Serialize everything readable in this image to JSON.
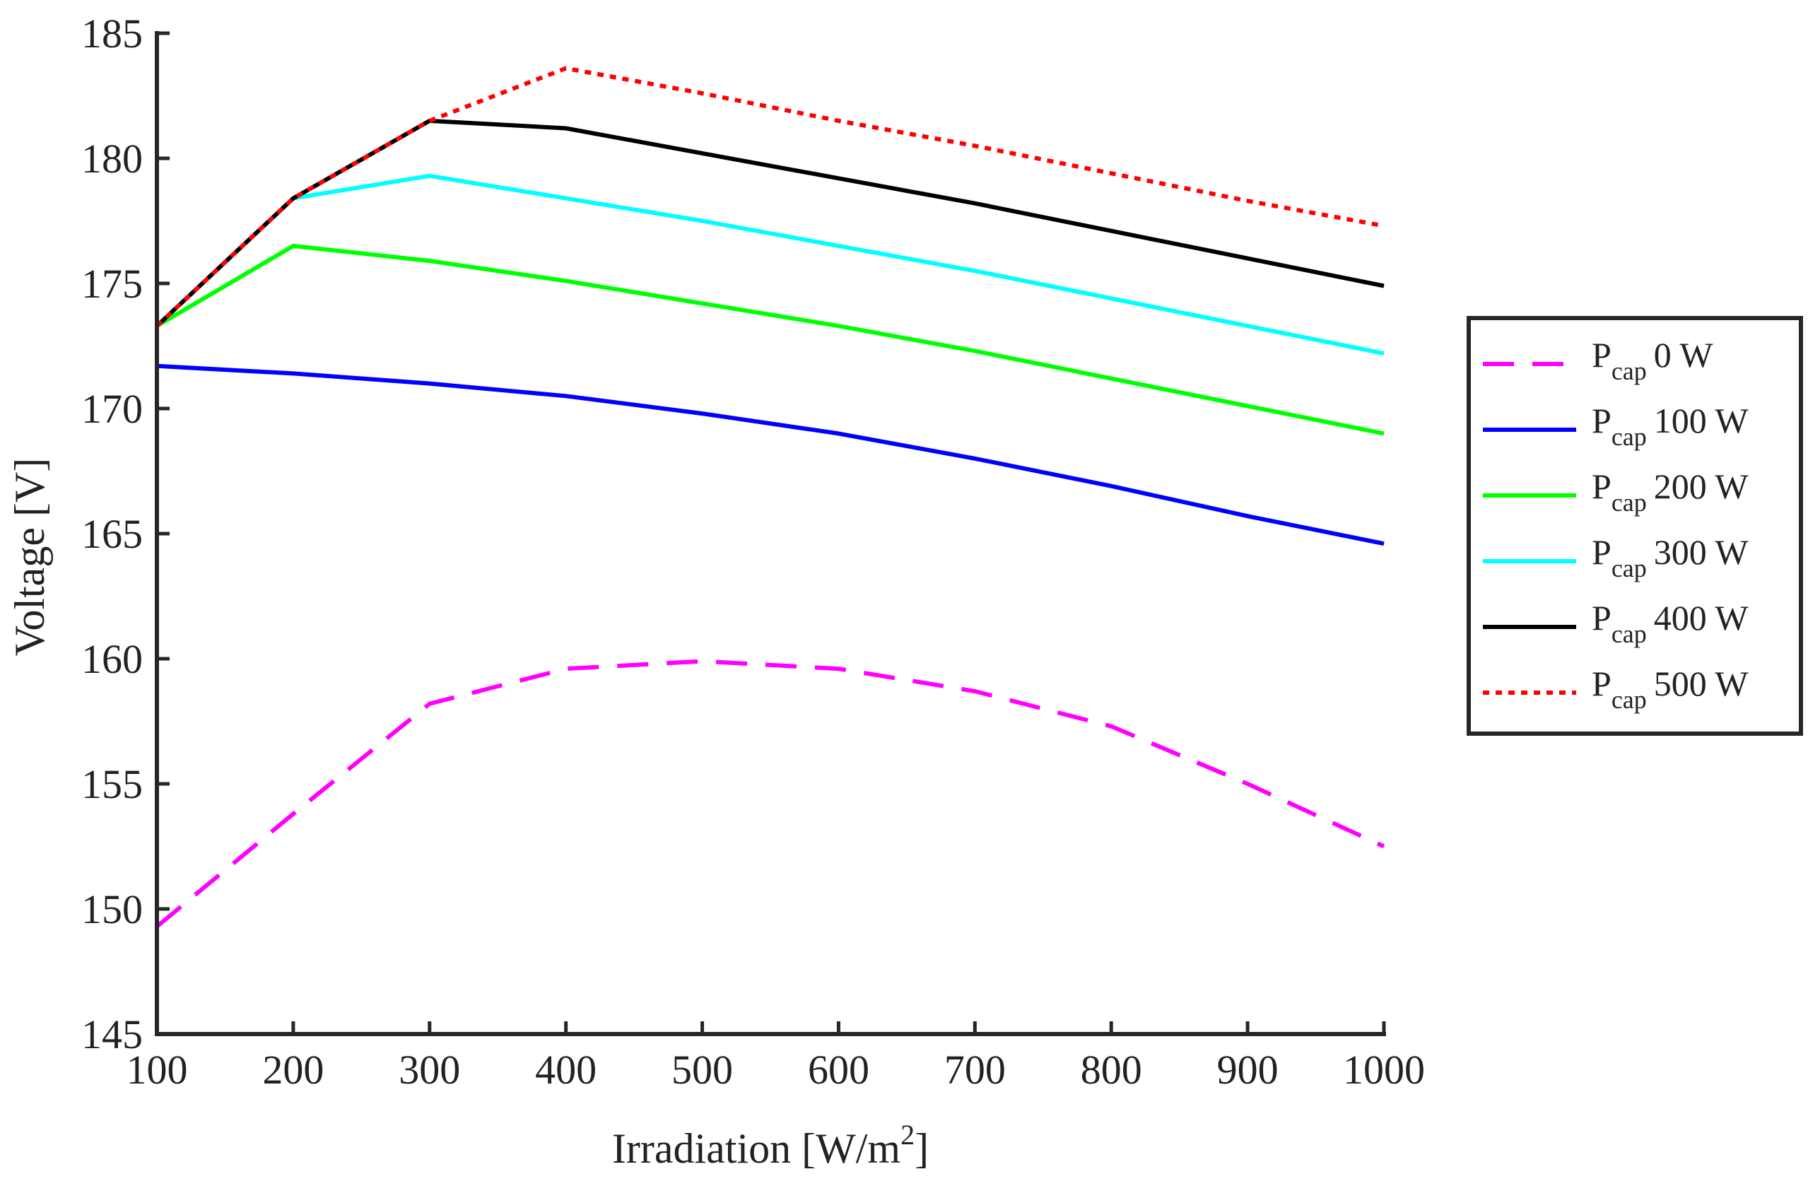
{
  "chart_data": {
    "type": "line",
    "title": "",
    "xlabel": "Irradiation [W/m",
    "xlabel_sup": "2",
    "xlabel_end": "]",
    "ylabel": "Voltage [V]",
    "xlim": [
      100,
      1000
    ],
    "ylim": [
      145,
      185
    ],
    "xticks": [
      100,
      200,
      300,
      400,
      500,
      600,
      700,
      800,
      900,
      1000
    ],
    "yticks": [
      145,
      150,
      155,
      160,
      165,
      170,
      175,
      180,
      185
    ],
    "grid": false,
    "legend_position": "right",
    "x": [
      100,
      200,
      300,
      400,
      500,
      600,
      700,
      800,
      900,
      1000
    ],
    "series": [
      {
        "name": "P",
        "sub": "cap",
        "suffix": "0 W",
        "color": "#ff00ff",
        "style": "dashed",
        "values": [
          149.3,
          153.8,
          158.2,
          159.6,
          159.9,
          159.6,
          158.7,
          157.3,
          155.0,
          152.5
        ]
      },
      {
        "name": "P",
        "sub": "cap",
        "suffix": "100 W",
        "color": "#0000ff",
        "style": "solid",
        "values": [
          171.7,
          171.4,
          171.0,
          170.5,
          169.8,
          169.0,
          168.0,
          166.9,
          165.7,
          164.6
        ]
      },
      {
        "name": "P",
        "sub": "cap",
        "suffix": "200 W",
        "color": "#00ff00",
        "style": "solid",
        "values": [
          173.3,
          176.5,
          175.9,
          175.1,
          174.2,
          173.3,
          172.3,
          171.2,
          170.1,
          169.0
        ]
      },
      {
        "name": "P",
        "sub": "cap",
        "suffix": "300 W",
        "color": "#00ffff",
        "style": "solid",
        "values": [
          173.3,
          178.4,
          179.3,
          178.4,
          177.5,
          176.5,
          175.5,
          174.4,
          173.3,
          172.2
        ]
      },
      {
        "name": "P",
        "sub": "cap",
        "suffix": "400 W",
        "color": "#000000",
        "style": "solid",
        "values": [
          173.3,
          178.4,
          181.5,
          181.2,
          180.2,
          179.2,
          178.2,
          177.1,
          176.0,
          174.9
        ]
      },
      {
        "name": "P",
        "sub": "cap",
        "suffix": "500 W",
        "color": "#ff0000",
        "style": "dotted",
        "values": [
          173.3,
          178.4,
          181.5,
          183.6,
          182.6,
          181.5,
          180.5,
          179.4,
          178.3,
          177.3
        ]
      }
    ]
  }
}
